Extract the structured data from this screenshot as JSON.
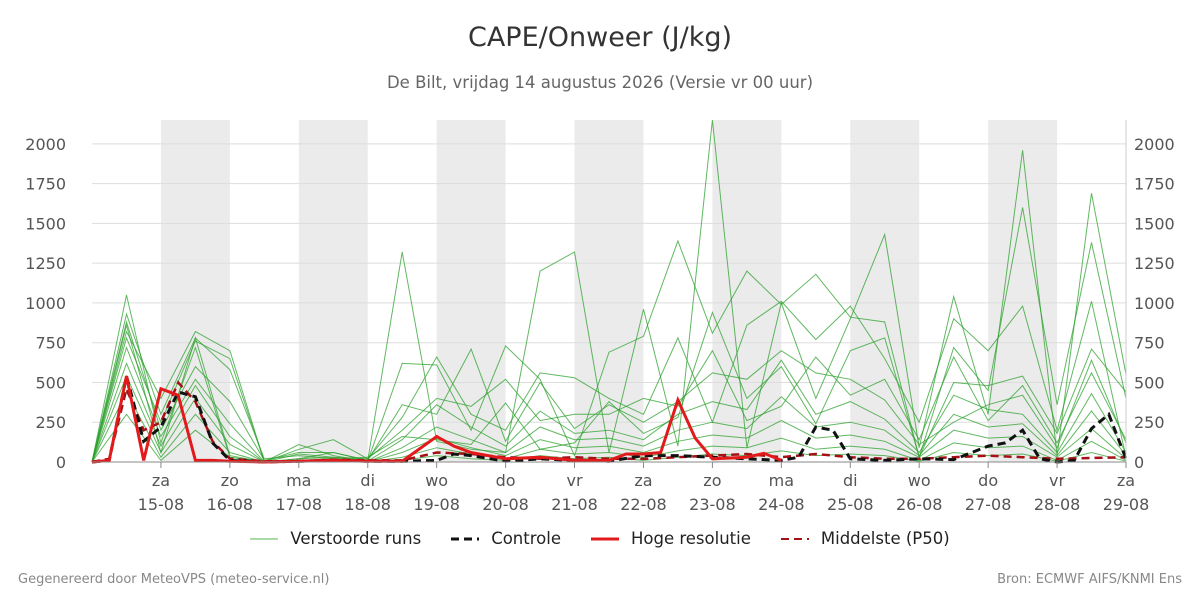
{
  "title": "CAPE/Onweer (J/kg)",
  "subtitle": "De Bilt, vrijdag 14 augustus 2026 (Versie vr 00 uur)",
  "footer_left": "Gegenereerd door MeteoVPS (meteo-service.nl)",
  "footer_right": "Bron: ECMWF AIFS/KNMI Ens",
  "colors": {
    "ensemble": "#2ca02c",
    "control": "#111111",
    "highres": "#e31a1c",
    "median": "#a50f15",
    "weekend_band": "#ebebeb",
    "grid": "#dddddd"
  },
  "legend": [
    {
      "label": "Verstoorde runs",
      "style": "ensemble"
    },
    {
      "label": "Controle",
      "style": "control"
    },
    {
      "label": "Hoge resolutie",
      "style": "highres"
    },
    {
      "label": "Middelste (P50)",
      "style": "median"
    }
  ],
  "chart_data": {
    "type": "line",
    "title": "CAPE/Onweer (J/kg)",
    "subtitle": "De Bilt, vrijdag 14 augustus 2026 (Versie vr 00 uur)",
    "x_unit": "days from 14-08-2026 00 UTC",
    "xlim": [
      0,
      15
    ],
    "ylim": [
      0,
      2150
    ],
    "y_ticks": [
      0,
      250,
      500,
      750,
      1000,
      1250,
      1500,
      1750,
      2000
    ],
    "y_tick_labels": [
      "0",
      "250",
      "500",
      "750",
      "1000",
      "1250",
      "1500",
      "1750",
      "2000"
    ],
    "x_ticks": [
      {
        "x": 1,
        "day": "za",
        "date": "15-08"
      },
      {
        "x": 2,
        "day": "zo",
        "date": "16-08"
      },
      {
        "x": 3,
        "day": "ma",
        "date": "17-08"
      },
      {
        "x": 4,
        "day": "di",
        "date": "18-08"
      },
      {
        "x": 5,
        "day": "wo",
        "date": "19-08"
      },
      {
        "x": 6,
        "day": "do",
        "date": "20-08"
      },
      {
        "x": 7,
        "day": "vr",
        "date": "21-08"
      },
      {
        "x": 8,
        "day": "za",
        "date": "22-08"
      },
      {
        "x": 9,
        "day": "zo",
        "date": "23-08"
      },
      {
        "x": 10,
        "day": "ma",
        "date": "24-08"
      },
      {
        "x": 11,
        "day": "di",
        "date": "25-08"
      },
      {
        "x": 12,
        "day": "wo",
        "date": "26-08"
      },
      {
        "x": 13,
        "day": "do",
        "date": "27-08"
      },
      {
        "x": 14,
        "day": "vr",
        "date": "28-08"
      },
      {
        "x": 15,
        "day": "za",
        "date": "29-08"
      }
    ],
    "shaded_bands": [
      [
        1,
        2
      ],
      [
        3,
        4
      ],
      [
        5,
        6
      ],
      [
        7,
        8
      ],
      [
        9,
        10
      ],
      [
        11,
        12
      ],
      [
        13,
        14
      ]
    ],
    "grid": true,
    "legend_position": "bottom",
    "series": [
      {
        "role": "control",
        "x": [
          0.0,
          0.25,
          0.5,
          0.75,
          1.0,
          1.25,
          1.5,
          1.75,
          2.0,
          2.5,
          3.0,
          3.5,
          4.0,
          4.5,
          5.0,
          5.25,
          5.5,
          6.0,
          6.5,
          7.0,
          7.5,
          8.0,
          8.5,
          9.0,
          9.5,
          10.0,
          10.25,
          10.5,
          10.75,
          11.0,
          11.5,
          12.0,
          12.5,
          13.0,
          13.25,
          13.5,
          13.75,
          14.0,
          14.25,
          14.5,
          14.75,
          15.0
        ],
        "y": [
          0,
          10,
          540,
          130,
          220,
          440,
          410,
          120,
          10,
          0,
          5,
          10,
          5,
          5,
          10,
          50,
          40,
          5,
          20,
          10,
          5,
          40,
          40,
          30,
          20,
          10,
          30,
          220,
          200,
          20,
          10,
          20,
          15,
          100,
          120,
          200,
          20,
          0,
          10,
          210,
          300,
          20
        ]
      },
      {
        "role": "highres",
        "x": [
          0.0,
          0.25,
          0.5,
          0.75,
          1.0,
          1.25,
          1.5,
          1.75,
          2.0,
          2.5,
          3.0,
          3.5,
          4.0,
          4.5,
          5.0,
          5.25,
          5.5,
          6.0,
          6.5,
          7.0,
          7.5,
          7.75,
          8.0,
          8.25,
          8.5,
          8.75,
          9.0,
          9.5,
          9.75,
          10.0
        ],
        "y": [
          0,
          10,
          540,
          10,
          460,
          420,
          10,
          10,
          5,
          0,
          5,
          10,
          5,
          5,
          160,
          100,
          60,
          20,
          30,
          10,
          10,
          50,
          50,
          60,
          390,
          150,
          20,
          30,
          55,
          10
        ]
      },
      {
        "role": "median",
        "x": [
          0.0,
          0.25,
          0.5,
          0.75,
          1.0,
          1.25,
          1.5,
          1.75,
          2.0,
          2.5,
          3.0,
          3.5,
          4.0,
          4.5,
          5.0,
          5.5,
          6.0,
          6.5,
          7.0,
          7.5,
          8.0,
          8.5,
          9.0,
          9.5,
          10.0,
          10.5,
          11.0,
          11.5,
          12.0,
          12.5,
          13.0,
          13.5,
          14.0,
          14.5,
          15.0
        ],
        "y": [
          0,
          20,
          460,
          200,
          250,
          500,
          380,
          130,
          20,
          5,
          5,
          15,
          10,
          10,
          60,
          50,
          30,
          20,
          30,
          20,
          20,
          30,
          40,
          50,
          30,
          50,
          30,
          20,
          20,
          30,
          40,
          30,
          20,
          25,
          30
        ]
      },
      {
        "role": "ensemble",
        "x": [
          0,
          0.5,
          1,
          1.5,
          2,
          2.5,
          3,
          3.5,
          4,
          4.5,
          5,
          5.5,
          6,
          6.5,
          7,
          7.5,
          8,
          8.5,
          9,
          9.5,
          10,
          10.5,
          11,
          11.5,
          12,
          12.5,
          13,
          13.5,
          14,
          14.5,
          15
        ],
        "y": [
          0,
          860,
          60,
          780,
          40,
          0,
          20,
          60,
          10,
          1320,
          130,
          80,
          60,
          1200,
          1320,
          60,
          960,
          100,
          2150,
          90,
          1000,
          400,
          900,
          1430,
          90,
          1040,
          300,
          1960,
          40,
          1690,
          550
        ]
      },
      {
        "role": "ensemble",
        "x": [
          0,
          0.5,
          1,
          1.5,
          2,
          2.5,
          3,
          3.5,
          4,
          4.5,
          5,
          5.5,
          6,
          6.5,
          7,
          7.5,
          8,
          8.5,
          9,
          9.5,
          10,
          10.5,
          11,
          11.5,
          12,
          12.5,
          13,
          13.5,
          14,
          14.5,
          15
        ],
        "y": [
          0,
          1050,
          120,
          720,
          30,
          0,
          110,
          40,
          5,
          620,
          610,
          200,
          730,
          520,
          40,
          690,
          790,
          1390,
          810,
          1200,
          990,
          1180,
          910,
          880,
          30,
          720,
          450,
          1600,
          360,
          1380,
          400
        ]
      },
      {
        "role": "ensemble",
        "x": [
          0,
          0.5,
          1,
          1.5,
          2,
          2.5,
          3,
          3.5,
          4,
          4.5,
          5,
          5.5,
          6,
          6.5,
          7,
          7.5,
          8,
          8.5,
          9,
          9.5,
          10,
          10.5,
          11,
          11.5,
          12,
          12.5,
          13,
          13.5,
          14,
          14.5,
          15
        ],
        "y": [
          0,
          820,
          400,
          820,
          700,
          0,
          80,
          140,
          20,
          280,
          660,
          300,
          200,
          560,
          530,
          400,
          300,
          780,
          250,
          860,
          1010,
          770,
          980,
          650,
          250,
          900,
          700,
          980,
          200,
          1010,
          30
        ]
      },
      {
        "role": "ensemble",
        "x": [
          0,
          0.5,
          1,
          1.5,
          2,
          2.5,
          3,
          3.5,
          4,
          4.5,
          5,
          5.5,
          6,
          6.5,
          7,
          7.5,
          8,
          8.5,
          9,
          9.5,
          10,
          10.5,
          11,
          11.5,
          12,
          12.5,
          13,
          13.5,
          14,
          14.5,
          15
        ],
        "y": [
          0,
          930,
          300,
          780,
          580,
          20,
          40,
          20,
          30,
          160,
          140,
          110,
          370,
          80,
          120,
          380,
          180,
          280,
          940,
          400,
          600,
          240,
          700,
          780,
          30,
          500,
          480,
          540,
          180,
          710,
          440
        ]
      },
      {
        "role": "ensemble",
        "x": [
          0,
          0.5,
          1,
          1.5,
          2,
          2.5,
          3,
          3.5,
          4,
          4.5,
          5,
          5.5,
          6,
          6.5,
          7,
          7.5,
          8,
          8.5,
          9,
          9.5,
          10,
          10.5,
          11,
          11.5,
          12,
          12.5,
          13,
          13.5,
          14,
          14.5,
          15
        ],
        "y": [
          0,
          880,
          200,
          600,
          380,
          10,
          60,
          60,
          10,
          360,
          300,
          710,
          130,
          500,
          210,
          360,
          250,
          380,
          560,
          520,
          700,
          560,
          520,
          390,
          110,
          250,
          360,
          420,
          90,
          640,
          120
        ]
      },
      {
        "role": "ensemble",
        "x": [
          0,
          0.5,
          1,
          1.5,
          2,
          2.5,
          3,
          3.5,
          4,
          4.5,
          5,
          5.5,
          6,
          6.5,
          7,
          7.5,
          8,
          8.5,
          9,
          9.5,
          10,
          10.5,
          11,
          11.5,
          12,
          12.5,
          13,
          13.5,
          14,
          14.5,
          15
        ],
        "y": [
          0,
          720,
          160,
          520,
          240,
          0,
          20,
          30,
          5,
          140,
          360,
          220,
          100,
          320,
          180,
          200,
          140,
          300,
          380,
          330,
          640,
          300,
          380,
          270,
          60,
          420,
          330,
          300,
          60,
          430,
          60
        ]
      },
      {
        "role": "ensemble",
        "x": [
          0,
          0.5,
          1,
          1.5,
          2,
          2.5,
          3,
          3.5,
          4,
          4.5,
          5,
          5.5,
          6,
          6.5,
          7,
          7.5,
          8,
          8.5,
          9,
          9.5,
          10,
          10.5,
          11,
          11.5,
          12,
          12.5,
          13,
          13.5,
          14,
          14.5,
          15
        ],
        "y": [
          0,
          620,
          100,
          480,
          160,
          0,
          10,
          20,
          0,
          90,
          220,
          140,
          60,
          220,
          140,
          150,
          100,
          200,
          250,
          210,
          410,
          220,
          250,
          200,
          40,
          300,
          220,
          240,
          40,
          320,
          40
        ]
      },
      {
        "role": "ensemble",
        "x": [
          0,
          0.5,
          1,
          1.5,
          2,
          2.5,
          3,
          3.5,
          4,
          4.5,
          5,
          5.5,
          6,
          6.5,
          7,
          7.5,
          8,
          8.5,
          9,
          9.5,
          10,
          10.5,
          11,
          11.5,
          12,
          12.5,
          13,
          13.5,
          14,
          14.5,
          15
        ],
        "y": [
          0,
          540,
          60,
          400,
          110,
          0,
          5,
          10,
          0,
          60,
          150,
          90,
          40,
          140,
          90,
          100,
          60,
          130,
          170,
          150,
          260,
          150,
          170,
          130,
          30,
          200,
          150,
          160,
          30,
          210,
          20
        ]
      },
      {
        "role": "ensemble",
        "x": [
          0,
          0.5,
          1,
          1.5,
          2,
          2.5,
          3,
          3.5,
          4,
          4.5,
          5,
          5.5,
          6,
          6.5,
          7,
          7.5,
          8,
          8.5,
          9,
          9.5,
          10,
          10.5,
          11,
          11.5,
          12,
          12.5,
          13,
          13.5,
          14,
          14.5,
          15
        ],
        "y": [
          0,
          440,
          30,
          300,
          60,
          0,
          0,
          5,
          0,
          30,
          90,
          50,
          20,
          80,
          50,
          60,
          30,
          70,
          100,
          90,
          150,
          80,
          100,
          80,
          10,
          120,
          90,
          100,
          10,
          130,
          10
        ]
      },
      {
        "role": "ensemble",
        "x": [
          0,
          0.5,
          1,
          1.5,
          2,
          2.5,
          3,
          3.5,
          4,
          4.5,
          5,
          5.5,
          6,
          6.5,
          7,
          7.5,
          8,
          8.5,
          9,
          9.5,
          10,
          10.5,
          11,
          11.5,
          12,
          12.5,
          13,
          13.5,
          14,
          14.5,
          15
        ],
        "y": [
          0,
          300,
          10,
          200,
          30,
          0,
          0,
          0,
          0,
          10,
          40,
          20,
          10,
          40,
          20,
          30,
          10,
          30,
          50,
          40,
          70,
          40,
          50,
          40,
          5,
          60,
          40,
          50,
          5,
          60,
          5
        ]
      },
      {
        "role": "ensemble",
        "x": [
          0,
          0.5,
          1,
          1.5,
          2,
          2.5,
          3,
          3.5,
          4,
          4.5,
          5,
          5.5,
          6,
          6.5,
          7,
          7.5,
          8,
          8.5,
          9,
          9.5,
          10,
          10.5,
          11,
          11.5,
          12,
          12.5,
          13,
          13.5,
          14,
          14.5,
          15
        ],
        "y": [
          0,
          780,
          250,
          760,
          650,
          0,
          50,
          30,
          20,
          200,
          400,
          350,
          520,
          260,
          300,
          300,
          400,
          350,
          700,
          260,
          350,
          660,
          420,
          520,
          140,
          660,
          260,
          480,
          120,
          560,
          140
        ]
      }
    ]
  }
}
